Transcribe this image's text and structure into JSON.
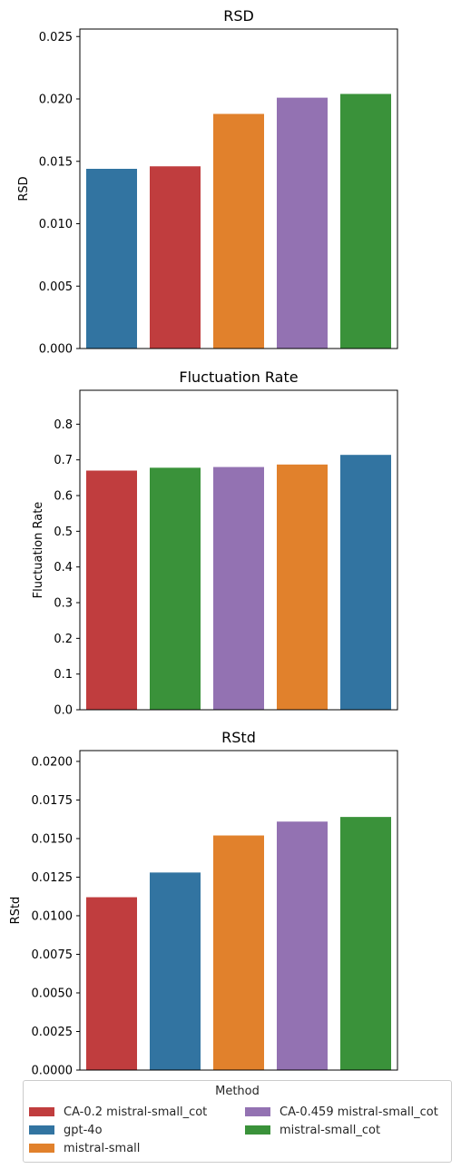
{
  "palette": {
    "CA-0.2 mistral-small_cot": "#c03d3e",
    "gpt-4o": "#3274a1",
    "mistral-small": "#e1812c",
    "CA-0.459 mistral-small_cot": "#9372b2",
    "mistral-small_cot": "#3a923a"
  },
  "legend": {
    "title": "Method",
    "items": [
      {
        "label": "CA-0.2 mistral-small_cot",
        "color": "#c03d3e"
      },
      {
        "label": "gpt-4o",
        "color": "#3274a1"
      },
      {
        "label": "mistral-small",
        "color": "#e1812c"
      },
      {
        "label": "CA-0.459 mistral-small_cot",
        "color": "#9372b2"
      },
      {
        "label": "mistral-small_cot",
        "color": "#3a923a"
      }
    ]
  },
  "chart_data": [
    {
      "type": "bar",
      "title": "RSD",
      "ylabel": "RSD",
      "xlabel": "",
      "ylim": [
        0,
        0.0256
      ],
      "yticks": [
        "0.000",
        "0.005",
        "0.010",
        "0.015",
        "0.020",
        "0.025"
      ],
      "ytick_values": [
        0,
        0.005,
        0.01,
        0.015,
        0.02,
        0.025
      ],
      "categories": [
        "gpt-4o",
        "CA-0.2 mistral-small_cot",
        "mistral-small",
        "CA-0.459 mistral-small_cot",
        "mistral-small_cot"
      ],
      "values": [
        0.0144,
        0.0146,
        0.0188,
        0.0201,
        0.0204
      ]
    },
    {
      "type": "bar",
      "title": "Fluctuation Rate",
      "ylabel": "Fluctuation Rate",
      "xlabel": "",
      "ylim": [
        0,
        0.895
      ],
      "yticks": [
        "0.0",
        "0.1",
        "0.2",
        "0.3",
        "0.4",
        "0.5",
        "0.6",
        "0.7",
        "0.8"
      ],
      "ytick_values": [
        0,
        0.1,
        0.2,
        0.3,
        0.4,
        0.5,
        0.6,
        0.7,
        0.8
      ],
      "categories": [
        "CA-0.2 mistral-small_cot",
        "mistral-small_cot",
        "CA-0.459 mistral-small_cot",
        "mistral-small",
        "gpt-4o"
      ],
      "values": [
        0.67,
        0.678,
        0.68,
        0.687,
        0.714
      ]
    },
    {
      "type": "bar",
      "title": "RStd",
      "ylabel": "RStd",
      "xlabel": "",
      "ylim": [
        0,
        0.0207
      ],
      "yticks": [
        "0.0000",
        "0.0025",
        "0.0050",
        "0.0075",
        "0.0100",
        "0.0125",
        "0.0150",
        "0.0175",
        "0.0200"
      ],
      "ytick_values": [
        0,
        0.0025,
        0.005,
        0.0075,
        0.01,
        0.0125,
        0.015,
        0.0175,
        0.02
      ],
      "categories": [
        "CA-0.2 mistral-small_cot",
        "gpt-4o",
        "mistral-small",
        "CA-0.459 mistral-small_cot",
        "mistral-small_cot"
      ],
      "values": [
        0.0112,
        0.0128,
        0.0152,
        0.0161,
        0.0164
      ]
    }
  ]
}
